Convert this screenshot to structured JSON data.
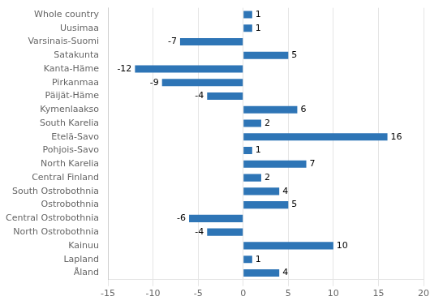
{
  "chart_data": {
    "type": "bar",
    "orientation": "horizontal",
    "categories": [
      "Whole country",
      "Uusimaa",
      "Varsinais-Suomi",
      "Satakunta",
      "Kanta-Häme",
      "Pirkanmaa",
      "Päijät-Häme",
      "Kymenlaakso",
      "South Karelia",
      "Etelä-Savo",
      "Pohjois-Savo",
      "North Karelia",
      "Central Finland",
      "South Ostrobothnia",
      "Ostrobothnia",
      "Central Ostrobothnia",
      "North Ostrobothnia",
      "Kainuu",
      "Lapland",
      "Åland"
    ],
    "values": [
      1,
      1,
      -7,
      5,
      -12,
      -9,
      -4,
      6,
      2,
      16,
      1,
      7,
      2,
      4,
      5,
      -6,
      -4,
      10,
      1,
      4
    ],
    "color": "#2E75B6",
    "xlim": [
      -15,
      20
    ],
    "xticks": [
      -15,
      -10,
      -5,
      0,
      5,
      10,
      15,
      20
    ],
    "grid": true,
    "data_labels": true
  }
}
